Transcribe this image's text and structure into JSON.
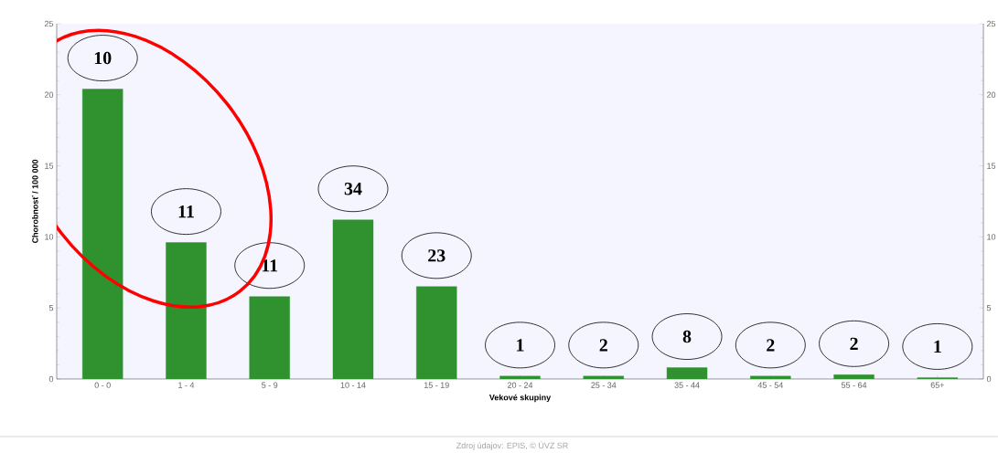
{
  "chart_data": {
    "type": "bar",
    "categories": [
      "0 - 0",
      "1 - 4",
      "5 - 9",
      "10 - 14",
      "15 - 19",
      "20 - 24",
      "25 - 34",
      "35 - 44",
      "45 - 54",
      "55 - 64",
      "65+"
    ],
    "values": [
      20.4,
      9.6,
      5.8,
      11.2,
      6.5,
      0.2,
      0.2,
      0.8,
      0.2,
      0.3,
      0.1
    ],
    "color": "#2f922f",
    "xlabel": "Vekové skupiny",
    "ylabel": "Chorobnosť / 100 000",
    "ylim": [
      0,
      25
    ],
    "yticks": [
      0,
      5,
      10,
      15,
      20,
      25
    ],
    "y2lim": [
      0,
      25
    ],
    "y2ticks": [
      0,
      5,
      10,
      15,
      20,
      25
    ],
    "annotations": [
      "10",
      "11",
      "11",
      "34",
      "23",
      "1",
      "2",
      "8",
      "2",
      "2",
      "1",
      "Zdroj údajov: EPIS, © ÚVZ SR"
    ]
  }
}
